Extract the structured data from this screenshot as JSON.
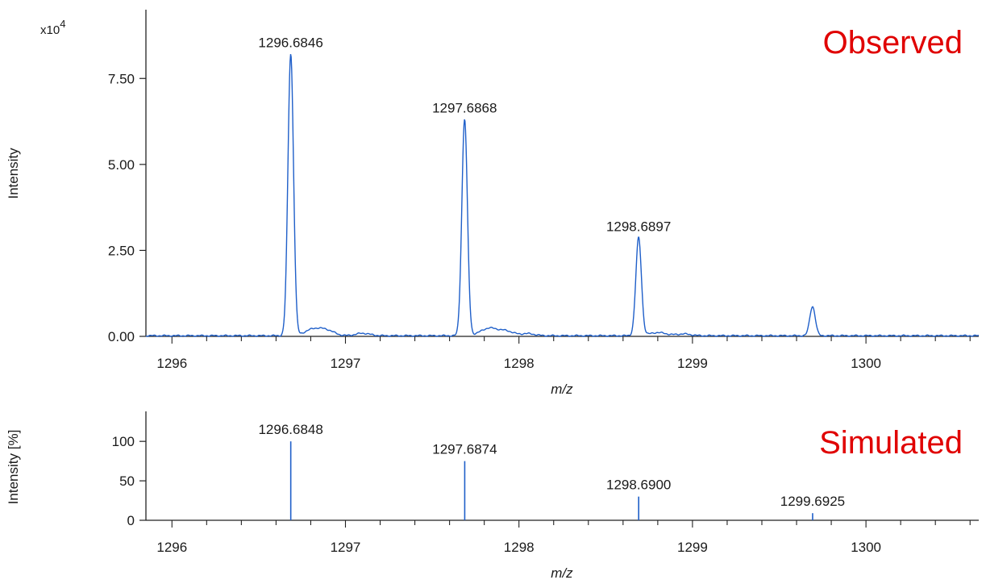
{
  "chart_data": [
    {
      "type": "line",
      "panel_label": "Observed",
      "ylabel": "Intensity",
      "xlabel": "m/z",
      "scale_prefix": "x10",
      "scale_exponent": "4",
      "xlim": [
        1295.85,
        1300.65
      ],
      "ylim": [
        0,
        9.5
      ],
      "xticks": [
        1296,
        1297,
        1298,
        1299,
        1300
      ],
      "xtick_labels": [
        "1296",
        "1297",
        "1298",
        "1299",
        "1300"
      ],
      "yticks": [
        0,
        2.5,
        5.0,
        7.5
      ],
      "ytick_labels": [
        "0.00",
        "2.50",
        "5.00",
        "7.50"
      ],
      "peaks": [
        {
          "x": 1296.6846,
          "y": 8.2,
          "label": "1296.6846"
        },
        {
          "x": 1297.6868,
          "y": 6.3,
          "label": "1297.6868"
        },
        {
          "x": 1298.6897,
          "y": 2.85,
          "label": "1298.6897"
        },
        {
          "x": 1299.692,
          "y": 0.85,
          "label": ""
        }
      ],
      "grid": false
    },
    {
      "type": "bar",
      "panel_label": "Simulated",
      "ylabel": "Intensity [%]",
      "xlabel": "m/z",
      "xlim": [
        1295.85,
        1300.65
      ],
      "ylim": [
        0,
        138
      ],
      "xticks": [
        1296,
        1297,
        1298,
        1299,
        1300
      ],
      "xtick_labels": [
        "1296",
        "1297",
        "1298",
        "1299",
        "1300"
      ],
      "yticks": [
        0,
        50,
        100
      ],
      "ytick_labels": [
        "0",
        "50",
        "100"
      ],
      "peaks": [
        {
          "x": 1296.6848,
          "y": 100,
          "label": "1296.6848"
        },
        {
          "x": 1297.6874,
          "y": 75,
          "label": "1297.6874"
        },
        {
          "x": 1298.69,
          "y": 30,
          "label": "1298.6900"
        },
        {
          "x": 1299.6925,
          "y": 9,
          "label": "1299.6925"
        }
      ],
      "grid": false
    }
  ],
  "colors": {
    "trace": "#1f5fc9",
    "panel_label": "#e00000",
    "axis": "#222222"
  }
}
